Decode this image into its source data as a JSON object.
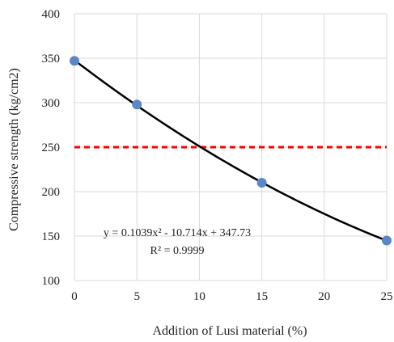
{
  "chart_data": {
    "type": "scatter",
    "xlabel": "Addition of Lusi material (%)",
    "ylabel": "Compressive strength (kg/cm2)",
    "xlim": [
      0,
      25
    ],
    "ylim": [
      100,
      400
    ],
    "xticks": [
      0,
      5,
      10,
      15,
      20,
      25
    ],
    "yticks": [
      100,
      150,
      200,
      250,
      300,
      350,
      400
    ],
    "grid": true,
    "series": [
      {
        "x": [
          0,
          5,
          15,
          25
        ],
        "y": [
          347,
          298,
          210,
          145
        ],
        "color": "#5b87c5"
      }
    ],
    "trendline": {
      "type": "polynomial",
      "coefficients": [
        0.1039,
        -10.714,
        347.73
      ],
      "color": "#000000"
    },
    "reference_line": {
      "y": 250,
      "color": "#ff0000",
      "style": "dashed"
    },
    "annotations": {
      "equation": "y = 0.1039x² - 10.714x + 347.73",
      "r_squared": "R² = 0.9999"
    }
  }
}
